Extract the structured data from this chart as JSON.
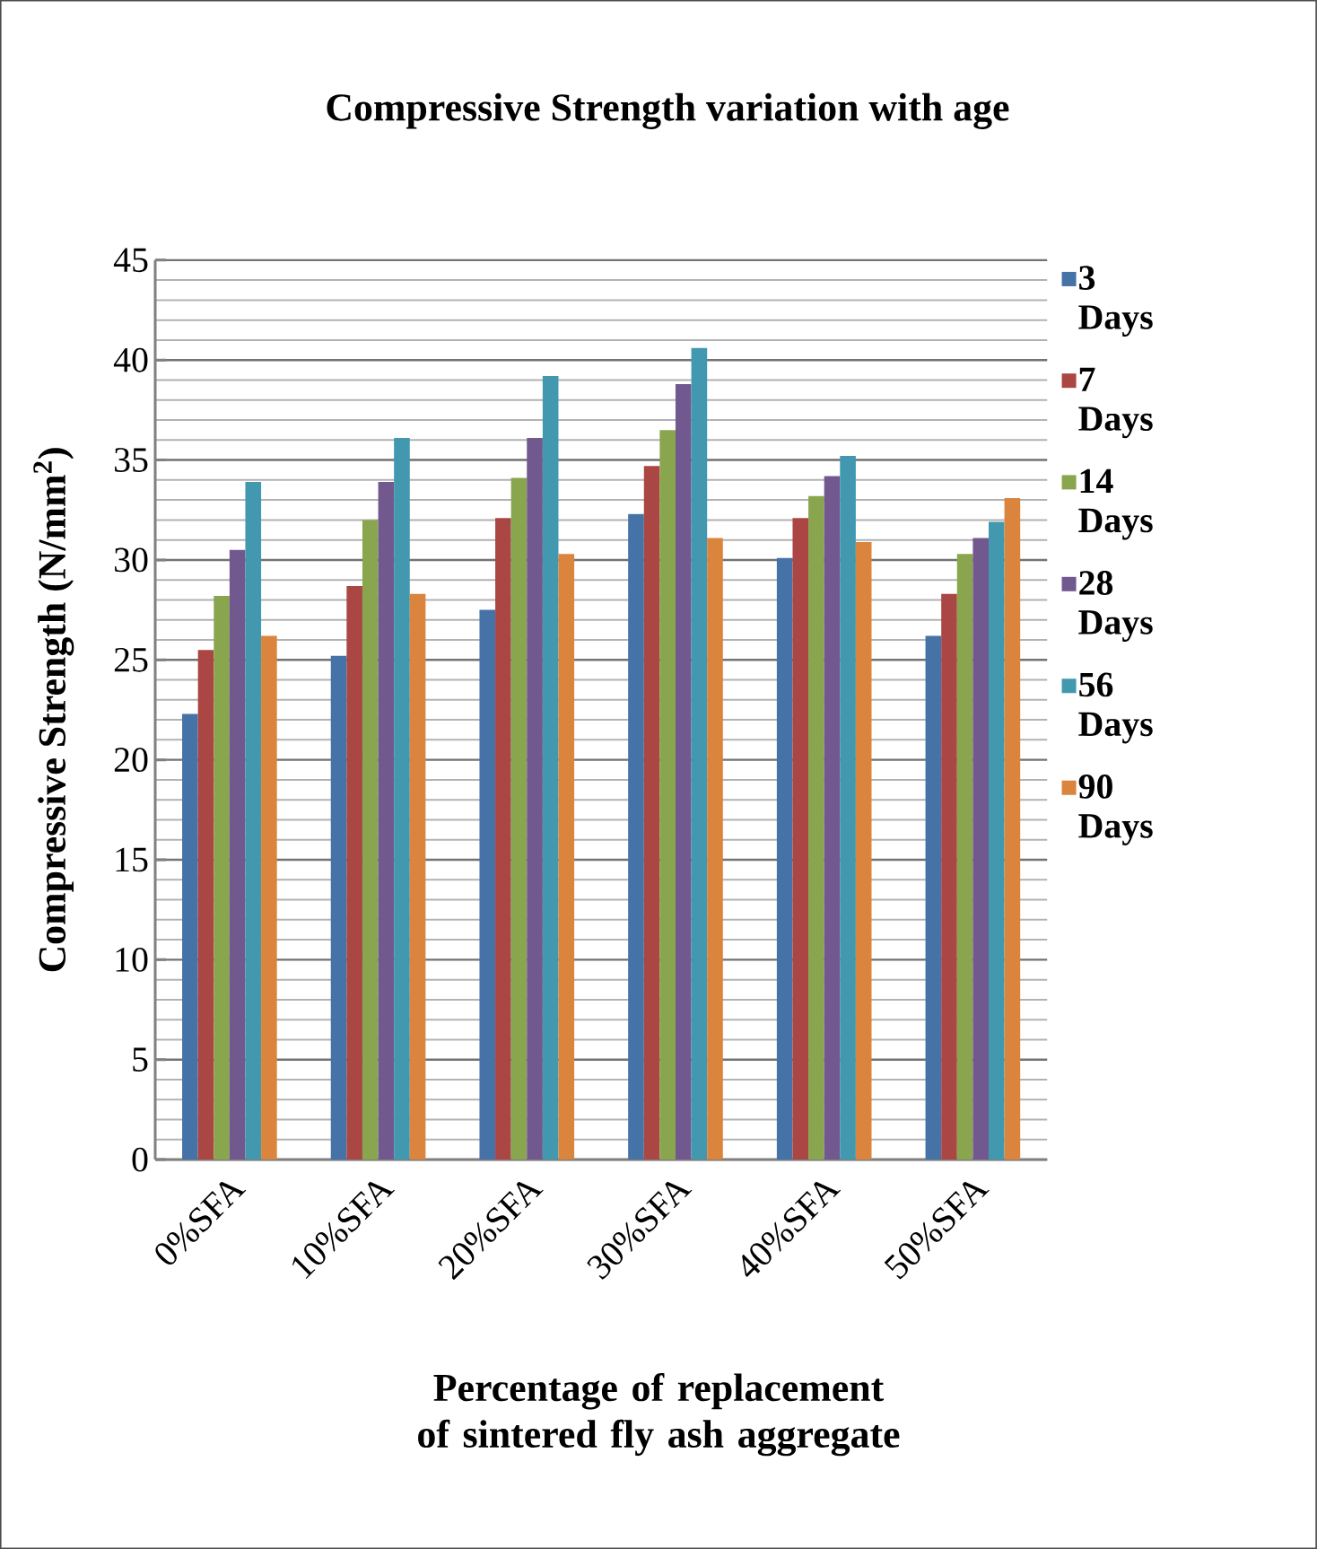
{
  "chart_data": {
    "type": "bar",
    "title": "Compressive Strength variation with age",
    "xlabel": "Percentage of replacement of sintered fly ash aggregate",
    "ylabel": "Compressive Strength (N/mm$^{2}$)",
    "categories": [
      "0%SFA",
      "10%SFA",
      "20%SFA",
      "30%SFA",
      "40%SFA",
      "50%SFA"
    ],
    "series": [
      {
        "name": "3 Days",
        "color": "#4572a7",
        "values": [
          22.3,
          25.2,
          27.5,
          32.3,
          30.1,
          26.2
        ]
      },
      {
        "name": "7 Days",
        "color": "#aa4643",
        "values": [
          25.5,
          28.7,
          32.1,
          34.7,
          32.1,
          28.3
        ]
      },
      {
        "name": "14 Days",
        "color": "#89a54e",
        "values": [
          28.2,
          32.0,
          34.1,
          36.5,
          33.2,
          30.3
        ]
      },
      {
        "name": "28 Days",
        "color": "#71588f",
        "values": [
          30.5,
          33.9,
          36.1,
          38.8,
          34.2,
          31.1
        ]
      },
      {
        "name": "56 Days",
        "color": "#4198af",
        "values": [
          33.9,
          36.1,
          39.2,
          40.6,
          35.2,
          31.9
        ]
      },
      {
        "name": "90 Days",
        "color": "#db843d",
        "values": [
          26.2,
          28.3,
          30.3,
          31.1,
          30.9,
          33.1
        ]
      }
    ],
    "ylim": [
      0,
      45
    ],
    "yticks": [
      0,
      5,
      10,
      15,
      20,
      25,
      30,
      35,
      40,
      45
    ],
    "grid": "y",
    "legend": "right"
  }
}
